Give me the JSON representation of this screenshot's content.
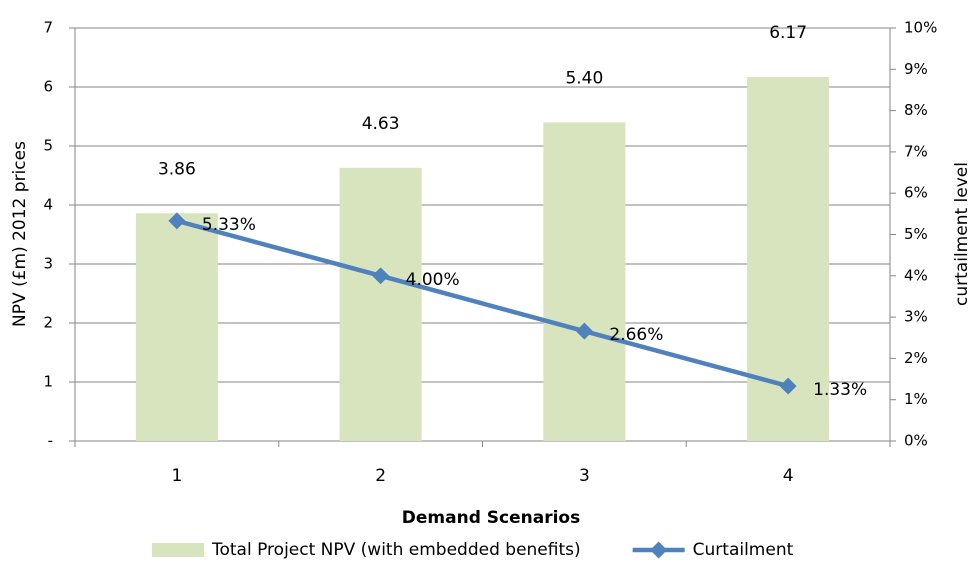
{
  "chart_data": {
    "type": "bar",
    "x_label": "Demand Scenarios",
    "y_label": "NPV (£m) 2012 prices",
    "y2_label": "curtailment level",
    "categories": [
      "1",
      "2",
      "3",
      "4"
    ],
    "series": [
      {
        "name": "Total Project NPV (with embedded benefits)",
        "type": "bar",
        "color": "#d7e4bd",
        "values": [
          3.86,
          4.63,
          5.4,
          6.17
        ],
        "value_labels": [
          "3.86",
          "4.63",
          "5.40",
          "6.17"
        ]
      },
      {
        "name": "Curtailment",
        "type": "line",
        "axis": "y2",
        "color": "#4f81bd",
        "values": [
          5.33,
          4.0,
          2.66,
          1.33
        ],
        "value_labels": [
          "5.33%",
          "4.00%",
          "2.66%",
          "1.33%"
        ]
      }
    ],
    "ylim": [
      0,
      7
    ],
    "yticks": [
      {
        "value": 0,
        "label": "-"
      },
      1,
      2,
      3,
      4,
      5,
      6,
      7
    ],
    "y2lim": [
      0,
      10
    ],
    "y2ticks": [
      {
        "value": 0,
        "label": "0%"
      },
      {
        "value": 1,
        "label": "1%"
      },
      {
        "value": 2,
        "label": "2%"
      },
      {
        "value": 3,
        "label": "3%"
      },
      {
        "value": 4,
        "label": "4%"
      },
      {
        "value": 5,
        "label": "5%"
      },
      {
        "value": 6,
        "label": "6%"
      },
      {
        "value": 7,
        "label": "7%"
      },
      {
        "value": 8,
        "label": "8%"
      },
      {
        "value": 9,
        "label": "9%"
      },
      {
        "value": 10,
        "label": "10%"
      }
    ],
    "grid": true,
    "legend": "bottom"
  }
}
